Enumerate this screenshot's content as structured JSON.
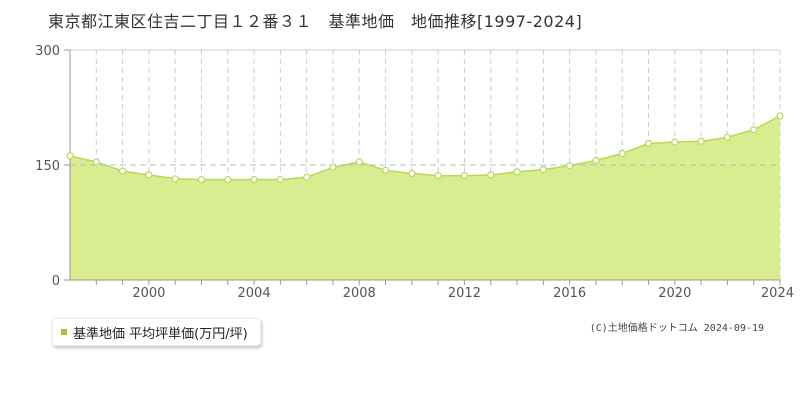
{
  "title": "東京都江東区住吉二丁目１２番３１　基準地価　地価推移[1997-2024]",
  "legend": {
    "label": "基準地価 平均坪単価(万円/坪)"
  },
  "copyright": "(C)土地価格ドットコム 2024-09-19",
  "colors": {
    "area_fill": "#d9ec8f",
    "line": "#b5d95a",
    "marker_fill": "#ffffff",
    "grid": "#cccccc",
    "axis": "#999999",
    "legend_marker": "#99cc33"
  },
  "chart_data": {
    "type": "area",
    "title": "東京都江東区住吉二丁目１２番３１　基準地価　地価推移[1997-2024]",
    "xlabel": "",
    "ylabel": "",
    "x": [
      1997,
      1998,
      1999,
      2000,
      2001,
      2002,
      2003,
      2004,
      2005,
      2006,
      2007,
      2008,
      2009,
      2010,
      2011,
      2012,
      2013,
      2014,
      2015,
      2016,
      2017,
      2018,
      2019,
      2020,
      2021,
      2022,
      2023,
      2024
    ],
    "series": [
      {
        "name": "基準地価 平均坪単価(万円/坪)",
        "values": [
          162,
          154,
          142,
          137,
          132,
          131,
          131,
          131,
          131,
          134,
          147,
          154,
          143,
          139,
          136,
          136,
          137,
          141,
          144,
          149,
          156,
          165,
          178,
          180,
          181,
          186,
          196,
          214
        ]
      }
    ],
    "xlim": [
      1997,
      2024
    ],
    "ylim": [
      0,
      300
    ],
    "x_ticks": [
      2000,
      2004,
      2008,
      2012,
      2016,
      2020,
      2024
    ],
    "y_ticks": [
      0,
      150,
      300
    ],
    "reference_line": 150,
    "grid": true,
    "legend_position": "bottom-left"
  }
}
